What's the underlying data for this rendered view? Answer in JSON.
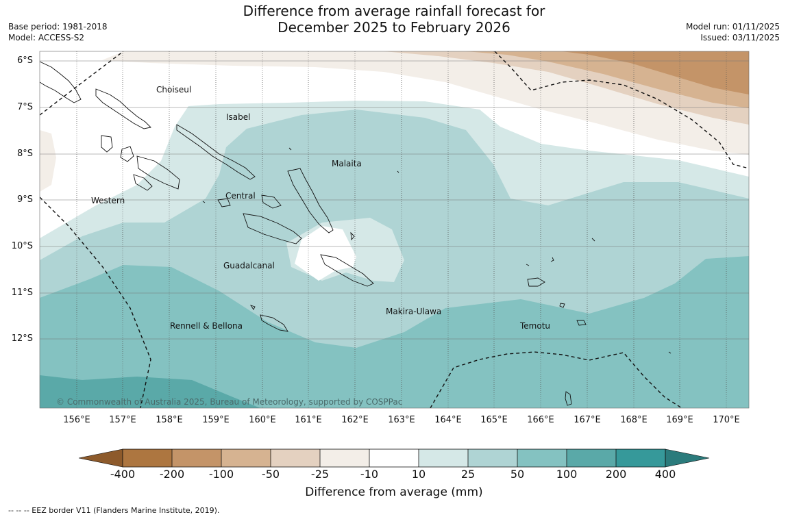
{
  "title_line1": "Difference from average rainfall forecast for",
  "title_line2": "December 2025 to February 2026",
  "base_period": "Base period: 1981-2018",
  "model": "Model: ACCESS-S2",
  "model_run": "Model run: 01/11/2025",
  "issued": "Issued: 03/11/2025",
  "lat_labels": [
    "6°S",
    "7°S",
    "8°S",
    "9°S",
    "10°S",
    "11°S",
    "12°S"
  ],
  "lon_labels": [
    "156°E",
    "157°E",
    "158°E",
    "159°E",
    "160°E",
    "161°E",
    "162°E",
    "163°E",
    "164°E",
    "165°E",
    "166°E",
    "167°E",
    "168°E",
    "169°E",
    "170°E"
  ],
  "regions": [
    "Choiseul",
    "Isabel",
    "Malaita",
    "Western",
    "Central",
    "Guadalcanal",
    "Makira-Ulawa",
    "Rennell & Bellona",
    "Temotu"
  ],
  "copyright": "© Commonwealth of Australia 2025, Bureau of Meteorology, supported by COSPPac",
  "colorbar": {
    "title": "Difference from average (mm)",
    "ticks": [
      "-400",
      "-200",
      "-100",
      "-50",
      "-25",
      "-10",
      "10",
      "25",
      "50",
      "100",
      "200",
      "400"
    ],
    "colors": [
      "#8d5a2b",
      "#ad7640",
      "#c49468",
      "#d6b391",
      "#e4d1c0",
      "#f3eee8",
      "#ffffff",
      "#d5e8e7",
      "#afd4d4",
      "#84c2c1",
      "#5aa9a8",
      "#36999a",
      "#2b7b7c"
    ]
  },
  "footnote": "--  --  -- EEZ border V11 (Flanders Marine Institute, 2019)."
}
